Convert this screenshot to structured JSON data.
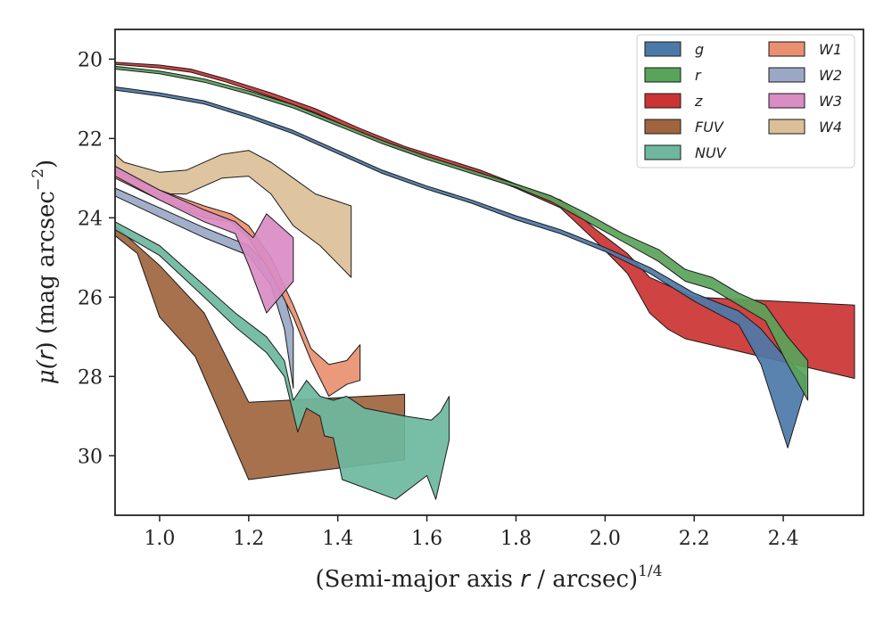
{
  "chart_data": {
    "type": "area",
    "xlabel": "(Semi-major axis r / arcsec)^1/4",
    "xlabel_parts": {
      "pre": "(Semi-major axis ",
      "var": "r",
      "mid": " / arcsec)",
      "sup": "1/4"
    },
    "ylabel": "μ(r) (mag arcsec^−2)",
    "ylabel_parts": {
      "mu": "μ(",
      "var": "r",
      "mid": ") (mag arcsec",
      "sup": "−2",
      "end": ")"
    },
    "xlim": [
      0.9,
      2.58
    ],
    "ylim": [
      31.5,
      19.25
    ],
    "y_inverted": true,
    "x_ticks": [
      "1.0",
      "1.2",
      "1.4",
      "1.6",
      "1.8",
      "2.0",
      "2.2",
      "2.4"
    ],
    "y_ticks": [
      "20",
      "22",
      "24",
      "26",
      "28",
      "30"
    ],
    "legend_position": "top-right",
    "series": [
      {
        "name": "g",
        "color": "#4c7aa8",
        "upper": [
          [
            0.9,
            20.7
          ],
          [
            1.0,
            20.85
          ],
          [
            1.1,
            21.05
          ],
          [
            1.2,
            21.4
          ],
          [
            1.3,
            21.8
          ],
          [
            1.4,
            22.3
          ],
          [
            1.5,
            22.8
          ],
          [
            1.6,
            23.2
          ],
          [
            1.7,
            23.55
          ],
          [
            1.8,
            23.95
          ],
          [
            1.9,
            24.3
          ],
          [
            2.0,
            24.75
          ],
          [
            2.1,
            25.25
          ],
          [
            2.2,
            25.9
          ],
          [
            2.3,
            26.35
          ],
          [
            2.35,
            26.8
          ],
          [
            2.41,
            27.6
          ],
          [
            2.45,
            28.0
          ]
        ],
        "lower": [
          [
            0.9,
            20.78
          ],
          [
            1.0,
            20.93
          ],
          [
            1.1,
            21.13
          ],
          [
            1.2,
            21.48
          ],
          [
            1.3,
            21.88
          ],
          [
            1.4,
            22.38
          ],
          [
            1.5,
            22.88
          ],
          [
            1.6,
            23.28
          ],
          [
            1.7,
            23.63
          ],
          [
            1.8,
            24.05
          ],
          [
            1.9,
            24.4
          ],
          [
            2.0,
            24.85
          ],
          [
            2.1,
            25.4
          ],
          [
            2.2,
            26.1
          ],
          [
            2.3,
            26.7
          ],
          [
            2.35,
            27.7
          ],
          [
            2.41,
            29.8
          ],
          [
            2.45,
            28.3
          ]
        ]
      },
      {
        "name": "r",
        "color": "#5aa35a",
        "upper": [
          [
            0.9,
            20.18
          ],
          [
            1.0,
            20.3
          ],
          [
            1.1,
            20.5
          ],
          [
            1.2,
            20.8
          ],
          [
            1.3,
            21.15
          ],
          [
            1.4,
            21.6
          ],
          [
            1.5,
            22.05
          ],
          [
            1.6,
            22.45
          ],
          [
            1.7,
            22.8
          ],
          [
            1.8,
            23.15
          ],
          [
            1.88,
            23.45
          ],
          [
            1.96,
            23.9
          ],
          [
            2.04,
            24.4
          ],
          [
            2.12,
            24.8
          ],
          [
            2.18,
            25.3
          ],
          [
            2.24,
            25.5
          ],
          [
            2.3,
            25.9
          ],
          [
            2.36,
            26.2
          ],
          [
            2.41,
            27.0
          ],
          [
            2.455,
            27.6
          ]
        ],
        "lower": [
          [
            0.9,
            20.25
          ],
          [
            1.0,
            20.37
          ],
          [
            1.1,
            20.58
          ],
          [
            1.2,
            20.88
          ],
          [
            1.3,
            21.23
          ],
          [
            1.4,
            21.68
          ],
          [
            1.5,
            22.13
          ],
          [
            1.6,
            22.53
          ],
          [
            1.7,
            22.88
          ],
          [
            1.8,
            23.23
          ],
          [
            1.88,
            23.6
          ],
          [
            1.96,
            24.1
          ],
          [
            2.04,
            24.6
          ],
          [
            2.12,
            25.1
          ],
          [
            2.18,
            25.6
          ],
          [
            2.24,
            25.8
          ],
          [
            2.3,
            26.2
          ],
          [
            2.36,
            26.6
          ],
          [
            2.41,
            27.7
          ],
          [
            2.455,
            28.6
          ]
        ]
      },
      {
        "name": "z",
        "color": "#cc3333",
        "upper": [
          [
            0.9,
            20.08
          ],
          [
            1.0,
            20.15
          ],
          [
            1.07,
            20.25
          ],
          [
            1.15,
            20.5
          ],
          [
            1.25,
            20.85
          ],
          [
            1.35,
            21.25
          ],
          [
            1.45,
            21.75
          ],
          [
            1.55,
            22.2
          ],
          [
            1.65,
            22.55
          ],
          [
            1.72,
            22.8
          ],
          [
            1.8,
            23.15
          ],
          [
            1.9,
            23.55
          ],
          [
            1.98,
            24.3
          ],
          [
            2.05,
            24.9
          ],
          [
            2.1,
            25.5
          ],
          [
            2.2,
            26.0
          ],
          [
            2.56,
            26.2
          ]
        ],
        "lower": [
          [
            0.9,
            20.13
          ],
          [
            1.0,
            20.22
          ],
          [
            1.07,
            20.33
          ],
          [
            1.15,
            20.58
          ],
          [
            1.25,
            20.95
          ],
          [
            1.35,
            21.35
          ],
          [
            1.45,
            21.85
          ],
          [
            1.55,
            22.3
          ],
          [
            1.65,
            22.65
          ],
          [
            1.72,
            22.9
          ],
          [
            1.8,
            23.25
          ],
          [
            1.9,
            23.75
          ],
          [
            1.98,
            24.6
          ],
          [
            2.05,
            25.4
          ],
          [
            2.1,
            26.4
          ],
          [
            2.14,
            26.8
          ],
          [
            2.18,
            27.05
          ],
          [
            2.56,
            28.05
          ]
        ]
      },
      {
        "name": "FUV",
        "color": "#a0653f",
        "upper": [
          [
            0.9,
            24.2
          ],
          [
            1.0,
            25.2
          ],
          [
            1.1,
            26.4
          ],
          [
            1.2,
            28.65
          ],
          [
            1.55,
            28.45
          ]
        ],
        "lower": [
          [
            0.9,
            24.45
          ],
          [
            0.95,
            24.9
          ],
          [
            1.0,
            26.5
          ],
          [
            1.08,
            27.5
          ],
          [
            1.2,
            30.6
          ],
          [
            1.55,
            30.1
          ]
        ]
      },
      {
        "name": "NUV",
        "color": "#6db89e",
        "upper": [
          [
            0.9,
            24.1
          ],
          [
            1.0,
            24.7
          ],
          [
            1.1,
            25.7
          ],
          [
            1.17,
            26.4
          ],
          [
            1.24,
            27.0
          ],
          [
            1.28,
            27.6
          ],
          [
            1.3,
            28.6
          ],
          [
            1.33,
            28.1
          ],
          [
            1.36,
            28.5
          ],
          [
            1.39,
            28.6
          ],
          [
            1.42,
            28.5
          ],
          [
            1.46,
            28.8
          ],
          [
            1.55,
            29.0
          ],
          [
            1.61,
            29.1
          ],
          [
            1.63,
            28.9
          ],
          [
            1.65,
            28.5
          ]
        ],
        "lower": [
          [
            0.9,
            24.3
          ],
          [
            1.0,
            24.95
          ],
          [
            1.1,
            26.0
          ],
          [
            1.17,
            26.75
          ],
          [
            1.24,
            27.4
          ],
          [
            1.28,
            28.0
          ],
          [
            1.31,
            29.4
          ],
          [
            1.33,
            28.8
          ],
          [
            1.36,
            29.0
          ],
          [
            1.37,
            29.5
          ],
          [
            1.39,
            29.55
          ],
          [
            1.41,
            30.6
          ],
          [
            1.53,
            31.1
          ],
          [
            1.6,
            30.5
          ],
          [
            1.62,
            31.1
          ],
          [
            1.65,
            29.6
          ]
        ]
      },
      {
        "name": "W1",
        "color": "#e89070",
        "upper": [
          [
            0.9,
            22.8
          ],
          [
            1.0,
            23.3
          ],
          [
            1.1,
            23.7
          ],
          [
            1.16,
            23.9
          ],
          [
            1.2,
            24.2
          ],
          [
            1.25,
            25.0
          ],
          [
            1.3,
            26.2
          ],
          [
            1.34,
            27.3
          ],
          [
            1.38,
            27.7
          ],
          [
            1.42,
            27.6
          ],
          [
            1.45,
            27.2
          ]
        ],
        "lower": [
          [
            0.9,
            23.0
          ],
          [
            1.0,
            23.55
          ],
          [
            1.1,
            24.0
          ],
          [
            1.16,
            24.1
          ],
          [
            1.2,
            24.5
          ],
          [
            1.25,
            25.4
          ],
          [
            1.3,
            26.5
          ],
          [
            1.34,
            27.6
          ],
          [
            1.38,
            28.5
          ],
          [
            1.42,
            28.2
          ],
          [
            1.45,
            28.1
          ]
        ]
      },
      {
        "name": "W2",
        "color": "#9aa8c6",
        "upper": [
          [
            0.9,
            23.25
          ],
          [
            1.0,
            23.75
          ],
          [
            1.1,
            24.25
          ],
          [
            1.2,
            24.7
          ],
          [
            1.25,
            25.3
          ],
          [
            1.28,
            26.0
          ],
          [
            1.3,
            26.8
          ]
        ],
        "lower": [
          [
            0.9,
            23.45
          ],
          [
            1.0,
            23.98
          ],
          [
            1.1,
            24.5
          ],
          [
            1.2,
            24.95
          ],
          [
            1.25,
            25.7
          ],
          [
            1.28,
            26.8
          ],
          [
            1.3,
            28.3
          ]
        ]
      },
      {
        "name": "W3",
        "color": "#da8cc4",
        "upper": [
          [
            0.9,
            22.7
          ],
          [
            1.0,
            23.3
          ],
          [
            1.1,
            23.8
          ],
          [
            1.17,
            24.1
          ],
          [
            1.21,
            24.5
          ],
          [
            1.24,
            23.9
          ],
          [
            1.3,
            24.5
          ]
        ],
        "lower": [
          [
            0.9,
            22.95
          ],
          [
            1.0,
            23.55
          ],
          [
            1.1,
            24.1
          ],
          [
            1.17,
            24.4
          ],
          [
            1.2,
            25.2
          ],
          [
            1.24,
            26.4
          ],
          [
            1.3,
            25.6
          ]
        ]
      },
      {
        "name": "W4",
        "color": "#dcbf98",
        "upper": [
          [
            0.9,
            22.4
          ],
          [
            0.92,
            22.6
          ],
          [
            1.0,
            22.85
          ],
          [
            1.06,
            22.8
          ],
          [
            1.14,
            22.4
          ],
          [
            1.2,
            22.3
          ],
          [
            1.25,
            22.6
          ],
          [
            1.3,
            23.0
          ],
          [
            1.35,
            23.4
          ],
          [
            1.43,
            23.7
          ]
        ],
        "lower": [
          [
            0.9,
            22.85
          ],
          [
            0.92,
            23.1
          ],
          [
            1.0,
            23.4
          ],
          [
            1.06,
            23.4
          ],
          [
            1.14,
            23.0
          ],
          [
            1.2,
            22.95
          ],
          [
            1.25,
            23.4
          ],
          [
            1.3,
            24.2
          ],
          [
            1.36,
            24.7
          ],
          [
            1.43,
            25.5
          ]
        ]
      }
    ]
  }
}
